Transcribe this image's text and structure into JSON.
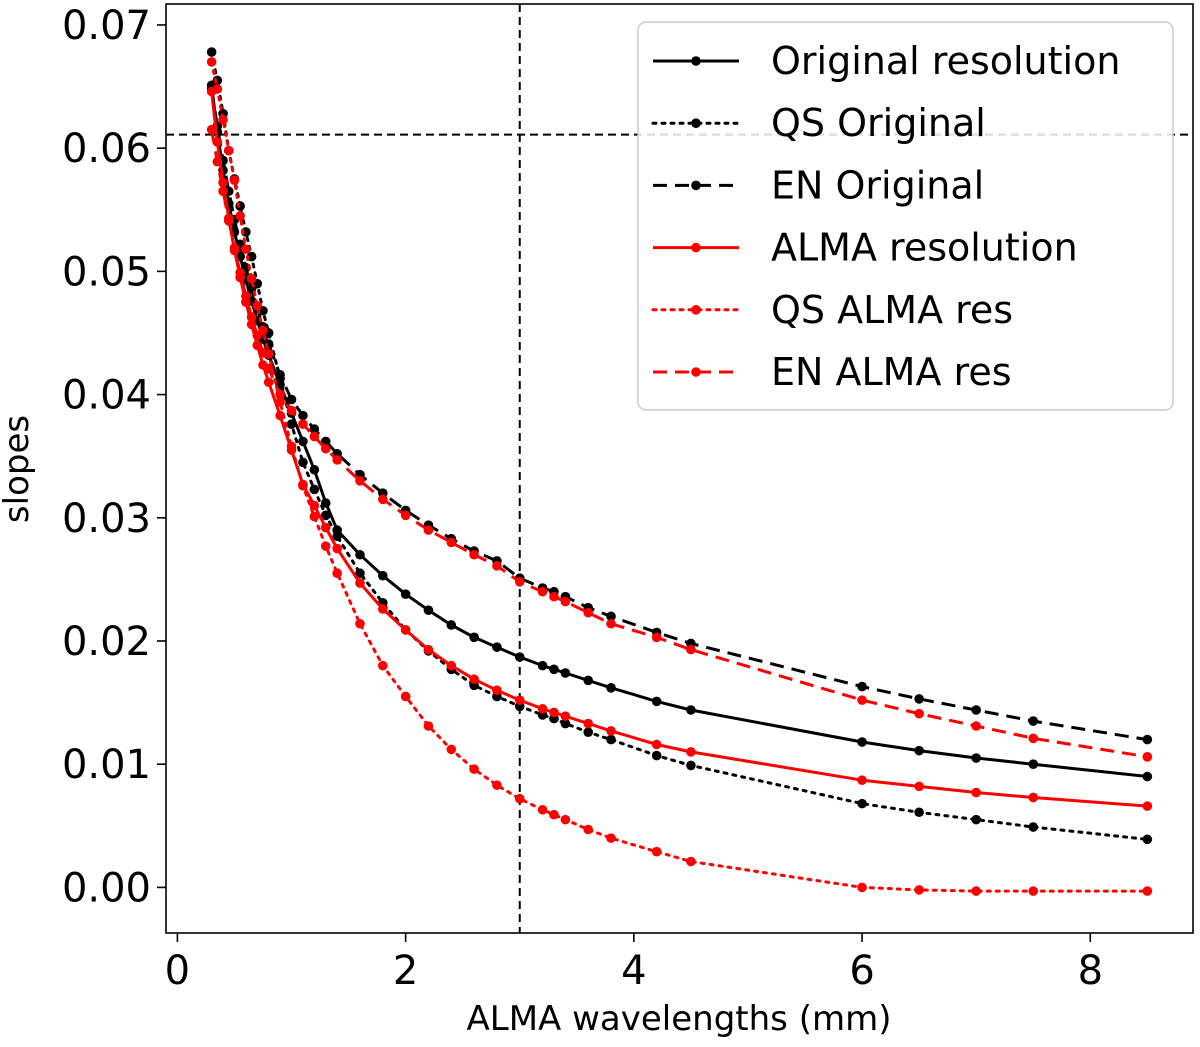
{
  "chart_data": {
    "type": "line",
    "title": "",
    "xlabel": "ALMA wavelengths (mm)",
    "ylabel": "slopes",
    "xlim": [
      -0.1,
      8.9
    ],
    "ylim": [
      -0.0037,
      0.0717
    ],
    "xticks": [
      0,
      2,
      4,
      6,
      8
    ],
    "xtick_labels": [
      "0",
      "2",
      "4",
      "6",
      "8"
    ],
    "yticks": [
      0.0,
      0.01,
      0.02,
      0.03,
      0.04,
      0.05,
      0.06,
      0.07
    ],
    "ytick_labels": [
      "0.00",
      "0.01",
      "0.02",
      "0.03",
      "0.04",
      "0.05",
      "0.06",
      "0.07"
    ],
    "grid": false,
    "legend_position": "top-right",
    "reference_lines": [
      {
        "orientation": "vertical",
        "value": 3.0,
        "style": "dashed",
        "color": "#000000"
      },
      {
        "orientation": "horizontal",
        "value": 0.0611,
        "style": "dashed",
        "color": "#000000"
      }
    ],
    "series": [
      {
        "name": "Original resolution",
        "color": "#000000",
        "style": "solid",
        "x": [
          0.3,
          0.35,
          0.4,
          0.45,
          0.5,
          0.55,
          0.6,
          0.65,
          0.7,
          0.75,
          0.8,
          0.9,
          1.0,
          1.1,
          1.2,
          1.3,
          1.4,
          1.6,
          1.8,
          2.0,
          2.2,
          2.4,
          2.6,
          2.8,
          3.0,
          3.2,
          3.3,
          3.4,
          3.6,
          3.8,
          4.2,
          4.5,
          6.0,
          6.5,
          7.0,
          7.5,
          8.5
        ],
        "y": [
          0.0651,
          0.0613,
          0.0582,
          0.0555,
          0.0532,
          0.0512,
          0.0493,
          0.0476,
          0.046,
          0.0445,
          0.0432,
          0.0408,
          0.0385,
          0.0362,
          0.0339,
          0.0312,
          0.029,
          0.027,
          0.0253,
          0.0238,
          0.0225,
          0.0213,
          0.0203,
          0.0195,
          0.0187,
          0.018,
          0.0177,
          0.0174,
          0.0168,
          0.0162,
          0.0151,
          0.0144,
          0.0118,
          0.0111,
          0.0105,
          0.01,
          0.009
        ]
      },
      {
        "name": "QS Original",
        "color": "#000000",
        "style": "dotted",
        "x": [
          0.3,
          0.35,
          0.4,
          0.45,
          0.5,
          0.55,
          0.6,
          0.65,
          0.7,
          0.75,
          0.8,
          0.9,
          1.0,
          1.1,
          1.2,
          1.3,
          1.4,
          1.6,
          1.8,
          2.0,
          2.2,
          2.4,
          2.6,
          2.8,
          3.0,
          3.2,
          3.3,
          3.4,
          3.6,
          3.8,
          4.2,
          4.5,
          6.0,
          6.5,
          7.0,
          7.5,
          8.5
        ],
        "y": [
          0.0678,
          0.0655,
          0.0628,
          0.0598,
          0.0575,
          0.0553,
          0.0532,
          0.0512,
          0.049,
          0.0468,
          0.045,
          0.0413,
          0.0376,
          0.0345,
          0.0323,
          0.0302,
          0.0285,
          0.0255,
          0.0231,
          0.0209,
          0.0192,
          0.0177,
          0.0164,
          0.0155,
          0.0147,
          0.014,
          0.0137,
          0.0133,
          0.0126,
          0.012,
          0.0107,
          0.0099,
          0.0068,
          0.0061,
          0.0055,
          0.0049,
          0.0039
        ]
      },
      {
        "name": "EN Original",
        "color": "#000000",
        "style": "dashed",
        "x": [
          0.3,
          0.35,
          0.4,
          0.45,
          0.5,
          0.55,
          0.6,
          0.65,
          0.7,
          0.75,
          0.8,
          0.9,
          1.0,
          1.1,
          1.2,
          1.3,
          1.4,
          1.6,
          1.8,
          2.0,
          2.2,
          2.4,
          2.6,
          2.8,
          3.0,
          3.2,
          3.3,
          3.4,
          3.6,
          3.8,
          4.2,
          4.5,
          6.0,
          6.5,
          7.0,
          7.5,
          8.5
        ],
        "y": [
          0.0648,
          0.0618,
          0.059,
          0.0565,
          0.0542,
          0.0522,
          0.0503,
          0.0486,
          0.047,
          0.0455,
          0.0441,
          0.0416,
          0.0396,
          0.0383,
          0.0372,
          0.0362,
          0.0352,
          0.0335,
          0.032,
          0.0306,
          0.0294,
          0.0283,
          0.0273,
          0.0265,
          0.0251,
          0.0243,
          0.024,
          0.0236,
          0.0227,
          0.022,
          0.0207,
          0.0198,
          0.0163,
          0.0153,
          0.0144,
          0.0135,
          0.012
        ]
      },
      {
        "name": "ALMA resolution",
        "color": "#ff0000",
        "style": "solid",
        "x": [
          0.3,
          0.35,
          0.4,
          0.45,
          0.5,
          0.55,
          0.6,
          0.65,
          0.7,
          0.75,
          0.8,
          0.9,
          1.0,
          1.1,
          1.2,
          1.3,
          1.4,
          1.6,
          1.8,
          2.0,
          2.2,
          2.4,
          2.6,
          2.8,
          3.0,
          3.2,
          3.3,
          3.4,
          3.6,
          3.8,
          4.2,
          4.5,
          6.0,
          6.5,
          7.0,
          7.5,
          8.5
        ],
        "y": [
          0.0646,
          0.0605,
          0.0572,
          0.0543,
          0.0517,
          0.0495,
          0.0475,
          0.0457,
          0.044,
          0.0424,
          0.041,
          0.0383,
          0.0355,
          0.0327,
          0.031,
          0.0292,
          0.0275,
          0.0247,
          0.0226,
          0.0209,
          0.0193,
          0.018,
          0.0169,
          0.016,
          0.0152,
          0.0145,
          0.0142,
          0.0139,
          0.0133,
          0.0127,
          0.0116,
          0.011,
          0.0087,
          0.0082,
          0.0077,
          0.0073,
          0.0066
        ]
      },
      {
        "name": "QS ALMA res",
        "color": "#ff0000",
        "style": "dotted",
        "x": [
          0.3,
          0.35,
          0.4,
          0.45,
          0.5,
          0.55,
          0.6,
          0.65,
          0.7,
          0.75,
          0.8,
          0.9,
          1.0,
          1.1,
          1.2,
          1.3,
          1.4,
          1.6,
          1.8,
          2.0,
          2.2,
          2.4,
          2.6,
          2.8,
          3.0,
          3.2,
          3.3,
          3.4,
          3.6,
          3.8,
          4.2,
          4.5,
          6.0,
          6.5,
          7.0,
          7.5,
          8.5
        ],
        "y": [
          0.067,
          0.0648,
          0.0623,
          0.0598,
          0.0574,
          0.0545,
          0.0518,
          0.0494,
          0.0472,
          0.0452,
          0.0433,
          0.0394,
          0.0358,
          0.0326,
          0.0301,
          0.0277,
          0.0255,
          0.0214,
          0.018,
          0.0155,
          0.0131,
          0.0112,
          0.0096,
          0.0083,
          0.0072,
          0.0063,
          0.0059,
          0.0055,
          0.0047,
          0.004,
          0.0029,
          0.0021,
          0.0,
          -0.0002,
          -0.0003,
          -0.0003,
          -0.0003
        ]
      },
      {
        "name": "EN ALMA res",
        "color": "#ff0000",
        "style": "dashed",
        "x": [
          0.3,
          0.35,
          0.4,
          0.45,
          0.5,
          0.55,
          0.6,
          0.65,
          0.7,
          0.75,
          0.8,
          0.9,
          1.0,
          1.1,
          1.2,
          1.3,
          1.4,
          1.6,
          1.8,
          2.0,
          2.2,
          2.4,
          2.6,
          2.8,
          3.0,
          3.2,
          3.3,
          3.4,
          3.6,
          3.8,
          4.2,
          4.5,
          6.0,
          6.5,
          7.0,
          7.5,
          8.5
        ],
        "y": [
          0.0615,
          0.0589,
          0.0565,
          0.0541,
          0.0519,
          0.0499,
          0.048,
          0.0463,
          0.0448,
          0.0434,
          0.0421,
          0.04,
          0.0387,
          0.0376,
          0.0366,
          0.0356,
          0.0347,
          0.033,
          0.0315,
          0.0302,
          0.029,
          0.028,
          0.027,
          0.0261,
          0.0248,
          0.024,
          0.0236,
          0.0232,
          0.0223,
          0.0214,
          0.0203,
          0.0193,
          0.0152,
          0.0141,
          0.0131,
          0.0121,
          0.0106
        ]
      }
    ]
  }
}
